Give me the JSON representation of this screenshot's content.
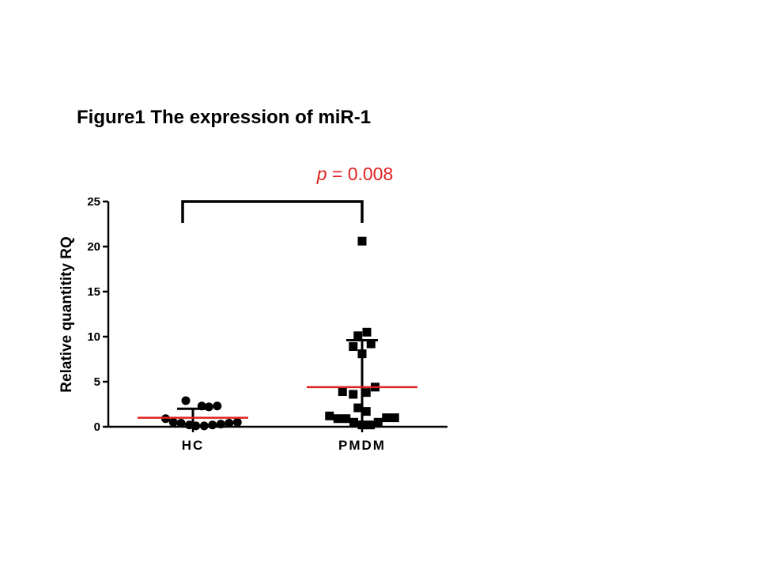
{
  "chart_data": {
    "type": "scatter",
    "title": "Figure1 The expression of miR-1",
    "ylabel": "Relative quantitity RQ",
    "xlabel": "",
    "ylim": [
      0,
      25
    ],
    "yticks": [
      0,
      5,
      10,
      15,
      20,
      25
    ],
    "categories": [
      "HC",
      "PMDM"
    ],
    "series": [
      {
        "category": "HC",
        "marker": "circle",
        "points": [
          {
            "offset": -0.46,
            "y": 0.9
          },
          {
            "offset": -0.33,
            "y": 0.5
          },
          {
            "offset": -0.2,
            "y": 0.4
          },
          {
            "offset": -0.12,
            "y": 2.9
          },
          {
            "offset": -0.06,
            "y": 0.2
          },
          {
            "offset": 0.05,
            "y": 0.1
          },
          {
            "offset": 0.15,
            "y": 2.3
          },
          {
            "offset": 0.19,
            "y": 0.1
          },
          {
            "offset": 0.27,
            "y": 2.2
          },
          {
            "offset": 0.33,
            "y": 0.2
          },
          {
            "offset": 0.41,
            "y": 2.3
          },
          {
            "offset": 0.47,
            "y": 0.3
          },
          {
            "offset": 0.61,
            "y": 0.4
          },
          {
            "offset": 0.75,
            "y": 0.5
          }
        ],
        "mean": 1.0,
        "error_low": 0.0,
        "error_high": 2.0
      },
      {
        "category": "PMDM",
        "marker": "square",
        "points": [
          {
            "offset": -0.55,
            "y": 1.2
          },
          {
            "offset": -0.41,
            "y": 0.9
          },
          {
            "offset": -0.33,
            "y": 3.9
          },
          {
            "offset": -0.27,
            "y": 0.9
          },
          {
            "offset": -0.15,
            "y": 3.6
          },
          {
            "offset": -0.15,
            "y": 8.9
          },
          {
            "offset": -0.14,
            "y": 0.5
          },
          {
            "offset": -0.07,
            "y": 2.1
          },
          {
            "offset": -0.07,
            "y": 10.1
          },
          {
            "offset": 0.0,
            "y": 20.6
          },
          {
            "offset": 0.0,
            "y": 8.1
          },
          {
            "offset": 0.0,
            "y": 0.2
          },
          {
            "offset": 0.07,
            "y": 3.8
          },
          {
            "offset": 0.07,
            "y": 1.7
          },
          {
            "offset": 0.08,
            "y": 10.5
          },
          {
            "offset": 0.14,
            "y": 0.2
          },
          {
            "offset": 0.15,
            "y": 9.2
          },
          {
            "offset": 0.22,
            "y": 4.4
          },
          {
            "offset": 0.27,
            "y": 0.5
          },
          {
            "offset": 0.41,
            "y": 1.0
          },
          {
            "offset": 0.55,
            "y": 1.0
          }
        ],
        "mean": 4.4,
        "error_low": 0.0,
        "error_high": 9.6
      }
    ],
    "significance": {
      "between": [
        "HC",
        "PMDM"
      ],
      "p_prefix": "p",
      "p_value_text": " = 0.008",
      "color": "#e02020"
    },
    "colors": {
      "points": "#000000",
      "mean_line": "#e02020",
      "error_bar": "#000000"
    },
    "grid": false,
    "legend": "none"
  }
}
